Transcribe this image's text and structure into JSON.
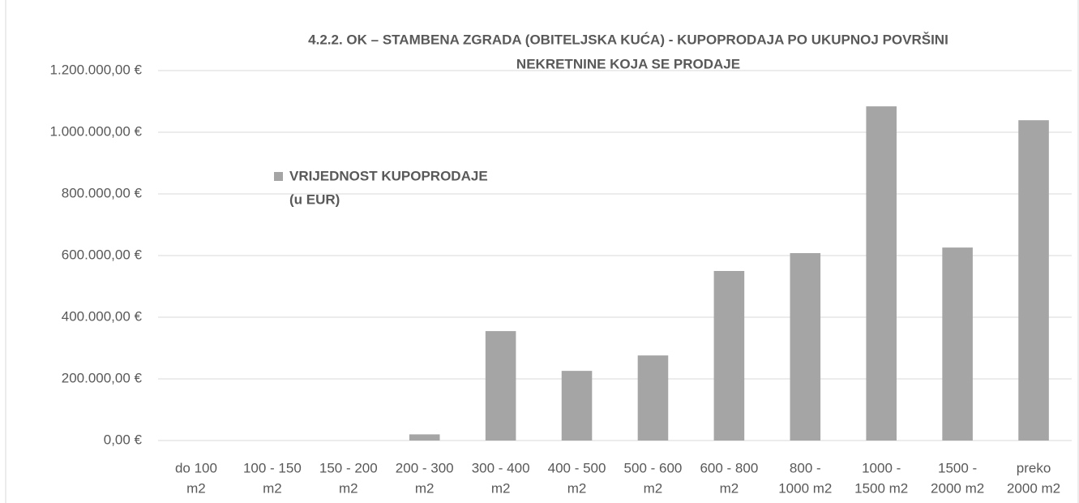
{
  "chart_data": {
    "type": "bar",
    "title": [
      "4.2.2. OK – STAMBENA ZGRADA (OBITELJSKA KUĆA) - KUPOPRODAJA PO UKUPNOJ POVRŠINI",
      "NEKRETNINE KOJA SE PRODAJE"
    ],
    "categories": [
      [
        "do 100",
        "m2"
      ],
      [
        "100 - 150",
        "m2"
      ],
      [
        "150 - 200",
        "m2"
      ],
      [
        "200 - 300",
        "m2"
      ],
      [
        "300 - 400",
        "m2"
      ],
      [
        "400 - 500",
        "m2"
      ],
      [
        "500 - 600",
        "m2"
      ],
      [
        "600 - 800",
        "m2"
      ],
      [
        "800 -",
        "1000 m2"
      ],
      [
        "1000 -",
        "1500 m2"
      ],
      [
        "1500 -",
        "2000 m2"
      ],
      [
        "preko",
        "2000 m2"
      ]
    ],
    "series": [
      {
        "name": [
          "VRIJEDNOST KUPOPRODAJE",
          "(u EUR)"
        ],
        "color": "#a5a5a5",
        "values": [
          0,
          0,
          0,
          20000,
          355000,
          226000,
          276000,
          550000,
          608000,
          1084000,
          626000,
          1039000
        ]
      }
    ],
    "ylim": [
      0,
      1200000
    ],
    "yticks": [
      {
        "value": 0,
        "label": "0,00 €"
      },
      {
        "value": 200000,
        "label": "200.000,00 €"
      },
      {
        "value": 400000,
        "label": "400.000,00 €"
      },
      {
        "value": 600000,
        "label": "600.000,00 €"
      },
      {
        "value": 800000,
        "label": "800.000,00 €"
      },
      {
        "value": 1000000,
        "label": "1.000.000,00 €"
      },
      {
        "value": 1200000,
        "label": "1.200.000,00 €"
      }
    ],
    "grid": true
  }
}
